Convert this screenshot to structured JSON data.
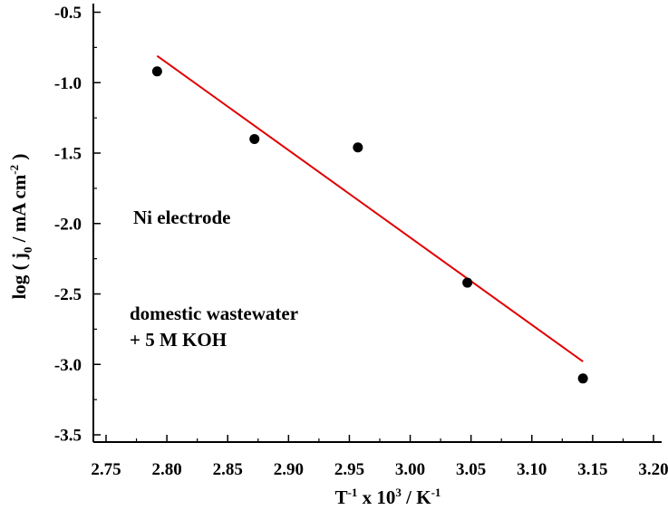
{
  "chart_data": {
    "type": "scatter",
    "title": "",
    "xlabel": "T-1 x 103 / K-1",
    "ylabel": "log ( j0 / mA cm-2 )",
    "xlabel_parts": {
      "base": "T",
      "sup1": "-1",
      "mid": " x 10",
      "sup2": "3",
      "end": " / K",
      "sup3": "-1"
    },
    "ylabel_parts": {
      "pre": "log ( j",
      "sub": "0",
      "mid": " / mA cm",
      "sup": "-2",
      "end": " )"
    },
    "xlim": [
      2.75,
      3.2
    ],
    "ylim": [
      -3.6,
      -0.45
    ],
    "x_ticks": [
      "2.75",
      "2.80",
      "2.85",
      "2.90",
      "2.95",
      "3.00",
      "3.05",
      "3.10",
      "3.15",
      "3.20"
    ],
    "y_ticks": [
      "-0.5",
      "-1.0",
      "-1.5",
      "-2.0",
      "-2.5",
      "-3.0",
      "-3.5"
    ],
    "grid": false,
    "series": [
      {
        "name": "data",
        "kind": "scatter",
        "color": "#000000",
        "x": [
          2.792,
          2.872,
          2.957,
          3.047,
          3.142
        ],
        "y": [
          -0.92,
          -1.4,
          -1.46,
          -2.42,
          -3.1
        ]
      },
      {
        "name": "linear fit",
        "kind": "line",
        "color": "#e00000",
        "x": [
          2.792,
          3.142
        ],
        "y": [
          -0.81,
          -2.98
        ]
      }
    ],
    "annotations": [
      "Ni electrode",
      "domestic wastewater",
      "+ 5 M KOH"
    ]
  }
}
